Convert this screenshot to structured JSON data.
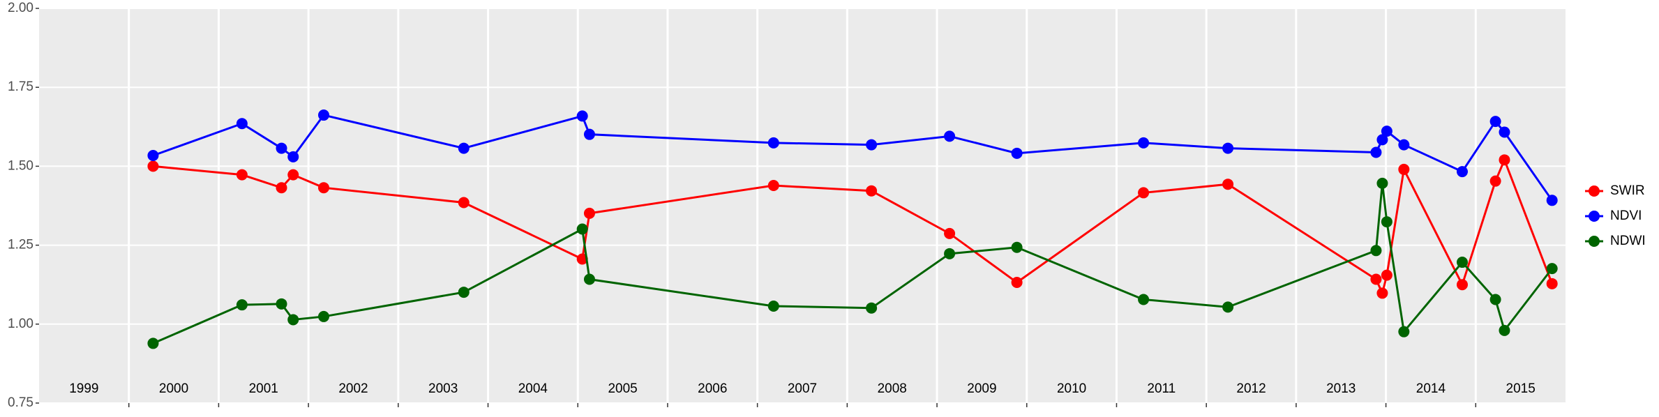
{
  "chart_data": {
    "type": "line",
    "x": [
      2000.27,
      2001.26,
      2001.7,
      2001.83,
      2002.17,
      2003.73,
      2005.05,
      2005.13,
      2007.18,
      2008.27,
      2009.14,
      2009.89,
      2011.3,
      2012.24,
      2013.89,
      2013.96,
      2014.01,
      2014.2,
      2014.85,
      2015.22,
      2015.32,
      2015.85
    ],
    "series": [
      {
        "name": "SWIR",
        "color": "#ff0000",
        "values": [
          1.5,
          1.473,
          1.432,
          1.473,
          1.432,
          1.385,
          1.206,
          1.351,
          1.439,
          1.422,
          1.287,
          1.132,
          1.416,
          1.443,
          1.142,
          1.098,
          1.155,
          1.49,
          1.125,
          1.453,
          1.52,
          1.128
        ]
      },
      {
        "name": "NDVI",
        "color": "#0000ff",
        "values": [
          1.534,
          1.635,
          1.557,
          1.53,
          1.662,
          1.557,
          1.659,
          1.601,
          1.574,
          1.568,
          1.595,
          1.541,
          1.574,
          1.557,
          1.544,
          1.584,
          1.611,
          1.568,
          1.483,
          1.642,
          1.608,
          1.392
        ]
      },
      {
        "name": "NDWI",
        "color": "#006400",
        "values": [
          0.939,
          1.061,
          1.064,
          1.014,
          1.024,
          1.101,
          1.301,
          1.142,
          1.057,
          1.051,
          1.223,
          1.243,
          1.078,
          1.054,
          1.233,
          1.446,
          1.324,
          0.976,
          1.196,
          1.078,
          0.98,
          1.176
        ]
      }
    ],
    "xlim": [
      1999,
      2016
    ],
    "xticks": [
      {
        "value": 1999.5,
        "label": "1999"
      },
      {
        "value": 2000.5,
        "label": "2000"
      },
      {
        "value": 2001.5,
        "label": "2001"
      },
      {
        "value": 2002.5,
        "label": "2002"
      },
      {
        "value": 2003.5,
        "label": "2003"
      },
      {
        "value": 2004.5,
        "label": "2004"
      },
      {
        "value": 2005.5,
        "label": "2005"
      },
      {
        "value": 2006.5,
        "label": "2006"
      },
      {
        "value": 2007.5,
        "label": "2007"
      },
      {
        "value": 2008.5,
        "label": "2008"
      },
      {
        "value": 2009.5,
        "label": "2009"
      },
      {
        "value": 2010.5,
        "label": "2010"
      },
      {
        "value": 2011.5,
        "label": "2011"
      },
      {
        "value": 2012.5,
        "label": "2012"
      },
      {
        "value": 2013.5,
        "label": "2013"
      },
      {
        "value": 2014.5,
        "label": "2014"
      },
      {
        "value": 2015.5,
        "label": "2015"
      }
    ],
    "ylim": [
      0.75,
      2.0
    ],
    "yticks": [
      {
        "value": 0.75,
        "label": "0.75"
      },
      {
        "value": 1,
        "label": "1.00"
      },
      {
        "value": 1.25,
        "label": "1.25"
      },
      {
        "value": 1.5,
        "label": "1.50"
      },
      {
        "value": 1.75,
        "label": "1.75"
      },
      {
        "value": 2,
        "label": "2.00"
      }
    ],
    "grid": true,
    "legend": "right"
  }
}
